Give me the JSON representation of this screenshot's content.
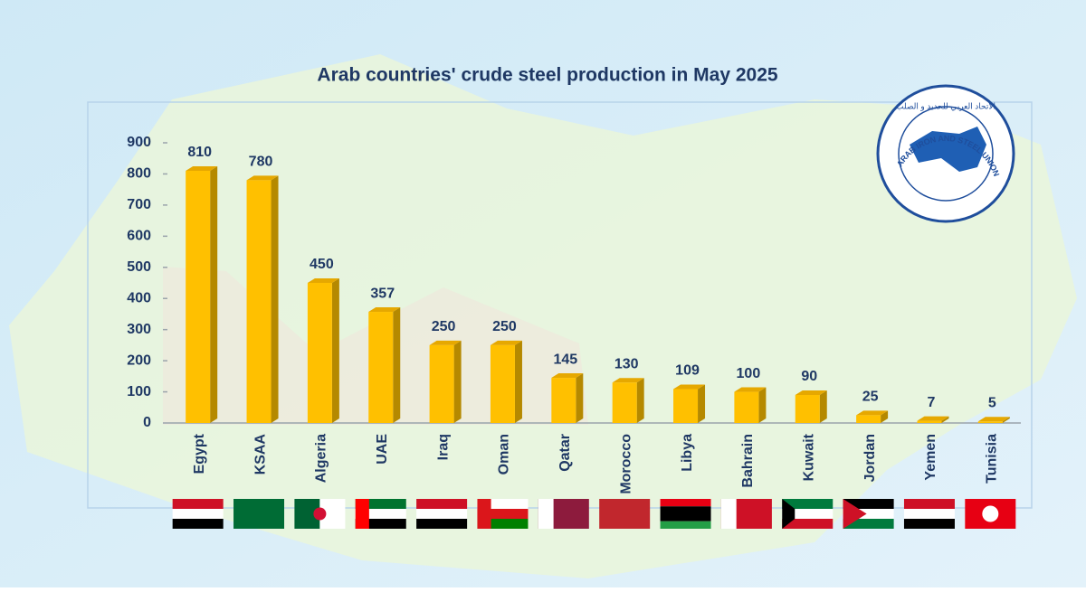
{
  "chart_data": {
    "type": "bar3d",
    "title": "Arab countries' crude steel production in May 2025",
    "categories": [
      "Egypt",
      "KSAA",
      "Algeria",
      "UAE",
      "Iraq",
      "Oman",
      "Qatar",
      "Morocco",
      "Libya",
      "Bahrain",
      "Kuwait",
      "Jordan",
      "Yemen",
      "Tunisia"
    ],
    "values": [
      810,
      780,
      450,
      357,
      250,
      250,
      145,
      130,
      109,
      100,
      90,
      25,
      7,
      5
    ],
    "color": "#ffc000",
    "ylim": [
      0,
      900
    ],
    "yticks": [
      0,
      100,
      200,
      300,
      400,
      500,
      600,
      700,
      800,
      900
    ],
    "grid": false
  },
  "logo": {
    "text": "ARAB IRON AND STEEL UNION",
    "arabic_text": "الاتحاد العربي للحديد و الصلب"
  }
}
